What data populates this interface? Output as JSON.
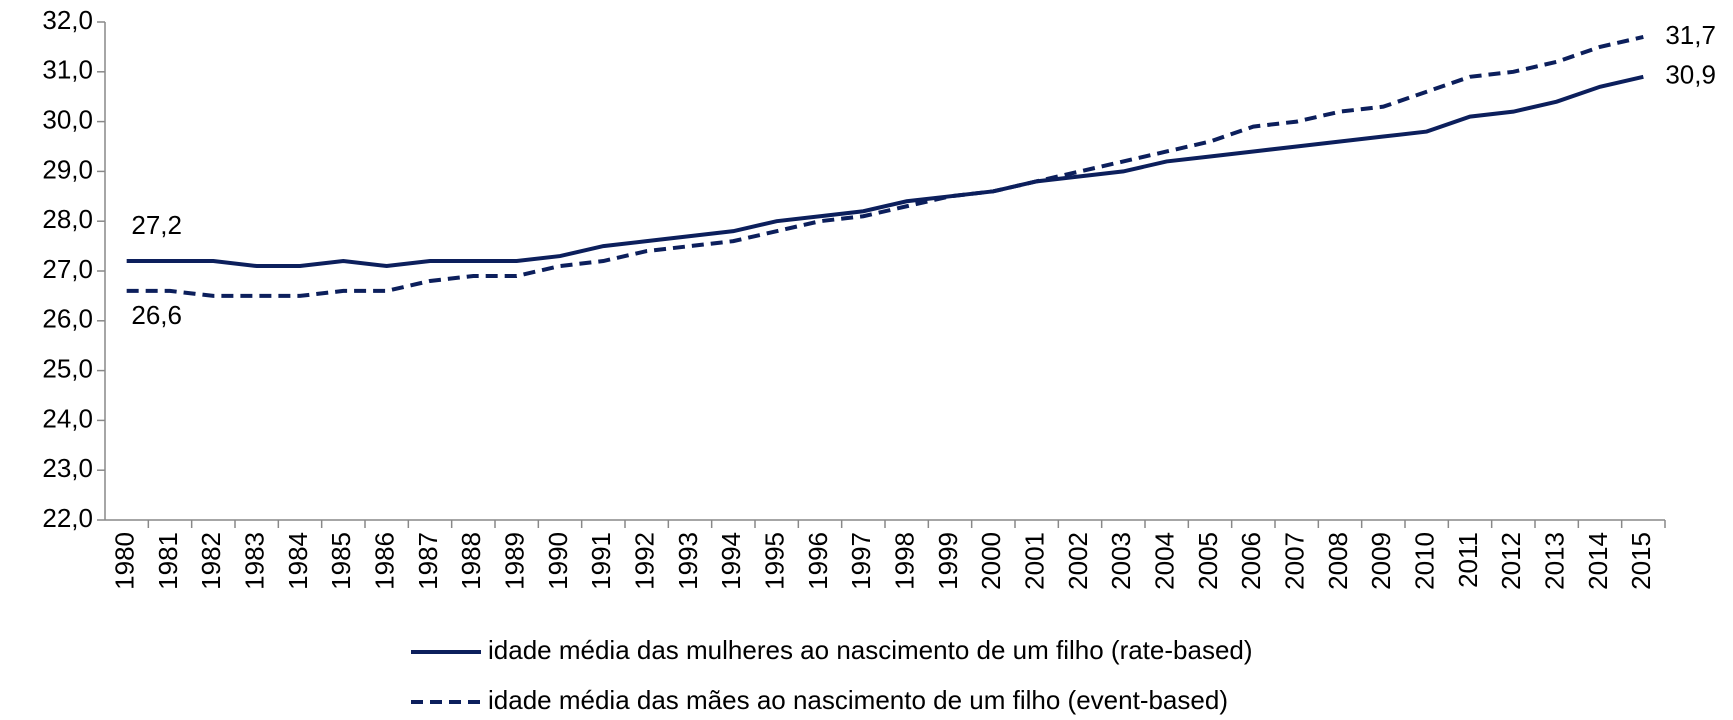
{
  "chart_data": {
    "type": "line",
    "categories": [
      "1980",
      "1981",
      "1982",
      "1983",
      "1984",
      "1985",
      "1986",
      "1987",
      "1988",
      "1989",
      "1990",
      "1991",
      "1992",
      "1993",
      "1994",
      "1995",
      "1996",
      "1997",
      "1998",
      "1999",
      "2000",
      "2001",
      "2002",
      "2003",
      "2004",
      "2005",
      "2006",
      "2007",
      "2008",
      "2009",
      "2010",
      "2011",
      "2012",
      "2013",
      "2014",
      "2015"
    ],
    "series": [
      {
        "name": "idade média das mulheres ao nascimento de um filho (rate-based)",
        "color": "#0c1f5c",
        "dash": false,
        "values": [
          27.2,
          27.2,
          27.2,
          27.1,
          27.1,
          27.2,
          27.1,
          27.2,
          27.2,
          27.2,
          27.3,
          27.5,
          27.6,
          27.7,
          27.8,
          28.0,
          28.1,
          28.2,
          28.4,
          28.5,
          28.6,
          28.8,
          28.9,
          29.0,
          29.2,
          29.3,
          29.4,
          29.5,
          29.6,
          29.7,
          29.8,
          30.1,
          30.2,
          30.4,
          30.7,
          30.9
        ],
        "value_labels": [
          "27,2",
          null,
          null,
          null,
          null,
          null,
          null,
          null,
          null,
          null,
          null,
          null,
          null,
          null,
          null,
          null,
          null,
          null,
          null,
          null,
          null,
          null,
          null,
          null,
          null,
          null,
          null,
          null,
          null,
          null,
          null,
          null,
          null,
          null,
          null,
          "30,9"
        ]
      },
      {
        "name": "idade média das mães ao nascimento de um filho (event-based)",
        "color": "#0c1f5c",
        "dash": true,
        "values": [
          26.6,
          26.6,
          26.5,
          26.5,
          26.5,
          26.6,
          26.6,
          26.8,
          26.9,
          26.9,
          27.1,
          27.2,
          27.4,
          27.5,
          27.6,
          27.8,
          28.0,
          28.1,
          28.3,
          28.5,
          28.6,
          28.8,
          29.0,
          29.2,
          29.4,
          29.6,
          29.9,
          30.0,
          30.2,
          30.3,
          30.6,
          30.9,
          31.0,
          31.2,
          31.5,
          31.7
        ],
        "value_labels": [
          "26,6",
          null,
          null,
          null,
          null,
          null,
          null,
          null,
          null,
          null,
          null,
          null,
          null,
          null,
          null,
          null,
          null,
          null,
          null,
          null,
          null,
          null,
          null,
          null,
          null,
          null,
          null,
          null,
          null,
          null,
          null,
          null,
          null,
          null,
          null,
          "31,7"
        ]
      }
    ],
    "ylim": [
      22,
      32
    ],
    "yticks": [
      {
        "value": 22,
        "label": "22,0"
      },
      {
        "value": 23,
        "label": "23,0"
      },
      {
        "value": 24,
        "label": "24,0"
      },
      {
        "value": 25,
        "label": "25,0"
      },
      {
        "value": 26,
        "label": "26,0"
      },
      {
        "value": 27,
        "label": "27,0"
      },
      {
        "value": 28,
        "label": "28,0"
      },
      {
        "value": 29,
        "label": "29,0"
      },
      {
        "value": 30,
        "label": "30,0"
      },
      {
        "value": 31,
        "label": "31,0"
      },
      {
        "value": 32,
        "label": "32,0"
      }
    ],
    "grid": false,
    "legend": "bottom"
  }
}
